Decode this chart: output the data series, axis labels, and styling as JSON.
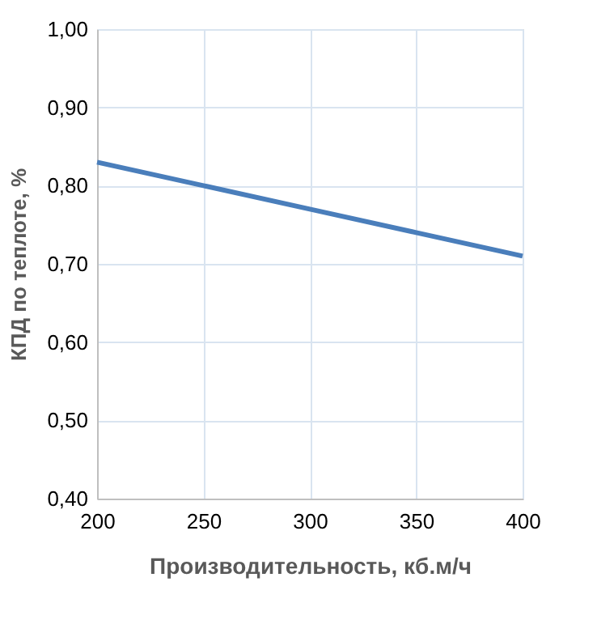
{
  "chart_data": {
    "type": "line",
    "xlabel": "Производительность, кб.м/ч",
    "ylabel": "КПД по теплоте, %",
    "x": [
      200,
      250,
      300,
      350,
      400
    ],
    "series": [
      {
        "color": "#4a7ebb",
        "values": [
          0.83,
          0.8,
          0.77,
          0.74,
          0.71
        ]
      }
    ],
    "xlim": [
      200,
      400
    ],
    "xticks": [
      200,
      250,
      300,
      350,
      400
    ],
    "ylim": [
      0.4,
      1.0
    ],
    "yticks": [
      {
        "value": 0.4,
        "label": "0,40"
      },
      {
        "value": 0.5,
        "label": "0,50"
      },
      {
        "value": 0.6,
        "label": "0,60"
      },
      {
        "value": 0.7,
        "label": "0,70"
      },
      {
        "value": 0.8,
        "label": "0,80"
      },
      {
        "value": 0.9,
        "label": "0,90"
      },
      {
        "value": 1.0,
        "label": "1,00"
      }
    ],
    "grid": true,
    "marker": "none",
    "line_style": "solid"
  }
}
